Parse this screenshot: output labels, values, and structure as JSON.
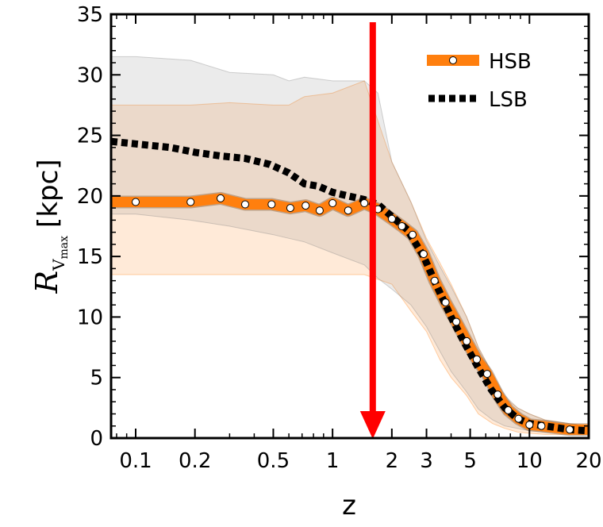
{
  "chart_data": {
    "type": "line",
    "xlabel": "z",
    "ylabel": {
      "symbol": "R",
      "subscript": "V",
      "subsubscript": "max",
      "unit": "[kpc]"
    },
    "xscale": "log",
    "xlim": [
      0.075,
      20
    ],
    "ylim": [
      0,
      35
    ],
    "x_ticks": [
      {
        "value": 0.1,
        "label": "0.1"
      },
      {
        "value": 0.2,
        "label": "0.2"
      },
      {
        "value": 0.5,
        "label": "0.5"
      },
      {
        "value": 1,
        "label": "1"
      },
      {
        "value": 2,
        "label": "2"
      },
      {
        "value": 3,
        "label": "3"
      },
      {
        "value": 5,
        "label": "5"
      },
      {
        "value": 10,
        "label": "10"
      },
      {
        "value": 20,
        "label": "20"
      }
    ],
    "y_ticks": [
      0,
      5,
      10,
      15,
      20,
      25,
      30,
      35
    ],
    "legend_position": "top-right",
    "series": [
      {
        "name": "HSB",
        "style": "solid-thick-markers",
        "color": "#ff7f0e",
        "x": [
          0.075,
          0.1,
          0.19,
          0.27,
          0.36,
          0.49,
          0.61,
          0.73,
          0.86,
          1.0,
          1.2,
          1.45,
          1.7,
          2.0,
          2.25,
          2.55,
          2.9,
          3.3,
          3.75,
          4.25,
          4.8,
          5.4,
          6.1,
          6.9,
          7.8,
          8.8,
          10.0,
          11.5,
          16.0,
          20.0
        ],
        "y": [
          19.5,
          19.5,
          19.5,
          19.8,
          19.3,
          19.3,
          19.0,
          19.2,
          18.8,
          19.4,
          18.8,
          19.4,
          18.9,
          18.1,
          17.5,
          16.8,
          15.2,
          13.0,
          11.2,
          9.6,
          8.0,
          6.5,
          5.3,
          3.6,
          2.3,
          1.6,
          1.1,
          1.0,
          0.7,
          0.7
        ]
      },
      {
        "name": "LSB",
        "style": "dotted",
        "color": "#000000",
        "x": [
          0.075,
          0.1,
          0.15,
          0.2,
          0.27,
          0.36,
          0.48,
          0.6,
          0.72,
          0.85,
          1.0,
          1.2,
          1.45,
          1.7,
          2.0,
          2.4,
          2.9,
          3.4,
          4.0,
          4.7,
          5.5,
          6.4,
          7.5,
          8.7,
          10.0,
          12.0,
          16.0,
          20.0
        ],
        "y": [
          24.5,
          24.3,
          24.0,
          23.6,
          23.3,
          23.1,
          22.6,
          21.9,
          21.0,
          20.8,
          20.3,
          20.0,
          19.7,
          19.3,
          18.3,
          17.2,
          15.0,
          12.5,
          10.0,
          7.8,
          5.8,
          4.0,
          2.5,
          1.6,
          1.2,
          1.0,
          0.7,
          0.6
        ]
      }
    ],
    "bands": [
      {
        "name": "HSB-spread",
        "color": "#ff7f0e",
        "x": [
          0.075,
          0.1,
          0.19,
          0.3,
          0.5,
          0.6,
          0.72,
          1.0,
          1.45,
          2.0,
          2.5,
          3.0,
          3.5,
          4.0,
          4.8,
          5.5,
          6.5,
          7.5,
          8.7,
          10.0,
          12.0,
          16.0,
          20.0
        ],
        "upper": [
          27.5,
          27.5,
          27.5,
          27.7,
          27.5,
          27.5,
          28.2,
          28.5,
          29.5,
          22.8,
          19.5,
          16.5,
          14.5,
          12.7,
          10.0,
          7.5,
          5.3,
          3.3,
          2.5,
          2.0,
          1.5,
          1.2,
          1.0
        ],
        "lower": [
          13.5,
          13.5,
          13.5,
          13.5,
          13.5,
          13.5,
          13.5,
          13.5,
          13.5,
          12.7,
          10.5,
          8.8,
          6.5,
          5.0,
          3.5,
          2.0,
          1.2,
          0.8,
          0.5,
          0.4,
          0.3,
          0.3,
          0.3
        ]
      },
      {
        "name": "LSB-spread",
        "color": "#808080",
        "x": [
          0.075,
          0.1,
          0.19,
          0.3,
          0.5,
          0.6,
          0.72,
          1.0,
          1.45,
          1.7,
          2.0,
          2.5,
          3.0,
          3.5,
          4.0,
          4.8,
          5.5,
          6.5,
          7.5,
          8.7,
          10.0,
          12.0,
          16.0,
          20.0
        ],
        "upper": [
          31.5,
          31.5,
          31.2,
          30.2,
          30.0,
          29.5,
          29.8,
          29.5,
          29.5,
          28.5,
          22.8,
          19.5,
          16.3,
          14.2,
          12.5,
          10.0,
          7.5,
          5.3,
          3.5,
          2.5,
          2.0,
          1.5,
          1.2,
          1.0
        ],
        "lower": [
          18.5,
          18.5,
          18.0,
          17.5,
          16.8,
          16.5,
          16.2,
          15.3,
          14.3,
          13.2,
          12.3,
          11.0,
          9.2,
          7.2,
          5.5,
          3.8,
          2.4,
          1.5,
          1.0,
          0.8,
          0.6,
          0.5,
          0.4,
          0.3
        ]
      }
    ],
    "annotations": [
      {
        "type": "arrow",
        "color": "#ff0000",
        "x": 1.6,
        "y_from": 35,
        "y_to": 0
      }
    ]
  }
}
